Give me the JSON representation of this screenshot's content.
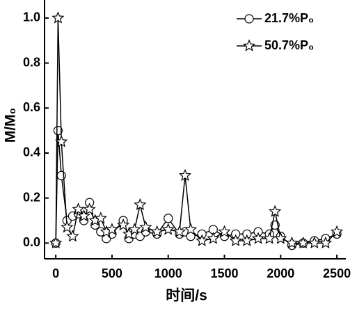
{
  "chart_data": {
    "type": "line",
    "xlabel": "时间/s",
    "ylabel": "M/M₀",
    "x": [
      0,
      20,
      50,
      100,
      150,
      200,
      250,
      300,
      350,
      400,
      450,
      500,
      600,
      650,
      700,
      750,
      800,
      900,
      1000,
      1100,
      1150,
      1200,
      1300,
      1400,
      1500,
      1600,
      1700,
      1800,
      1900,
      1950,
      2000,
      2100,
      2200,
      2300,
      2400,
      2500
    ],
    "series": [
      {
        "name": "21.7%P₀",
        "color": "#000000",
        "marker": "circle",
        "values": [
          0,
          0.5,
          0.3,
          0.1,
          0.12,
          0.13,
          0.1,
          0.18,
          0.08,
          0.05,
          0.02,
          0.04,
          0.1,
          0.02,
          0.04,
          0.03,
          0.05,
          0.04,
          0.11,
          0.04,
          0.05,
          0.03,
          0.04,
          0.06,
          0.03,
          0.04,
          0.04,
          0.05,
          0.04,
          0.08,
          0.03,
          -0.01,
          0,
          0.01,
          0.02,
          0.04
        ]
      },
      {
        "name": "50.7%P₀",
        "color": "#000000",
        "marker": "star",
        "values": [
          0,
          1.0,
          0.45,
          0.07,
          0.03,
          0.15,
          0.12,
          0.15,
          0.1,
          0.11,
          0.05,
          0.06,
          0.08,
          0.04,
          0.06,
          0.17,
          0.07,
          0.05,
          0.06,
          0.05,
          0.3,
          0.06,
          0.01,
          0.02,
          0.05,
          0.01,
          0.01,
          0.02,
          0.02,
          0.14,
          0.02,
          0,
          0,
          0,
          0,
          0.05
        ]
      }
    ],
    "xlim": [
      -100,
      2580
    ],
    "ylim": [
      -0.07,
      1.08
    ],
    "xticks": [
      0,
      500,
      1000,
      1500,
      2000,
      2500
    ],
    "yticks": [
      {
        "value": 0,
        "label": "0.0"
      },
      {
        "value": 0.2,
        "label": "0.2"
      },
      {
        "value": 0.4,
        "label": "0.4"
      },
      {
        "value": 0.6,
        "label": "0.6"
      },
      {
        "value": 0.8,
        "label": "0.8"
      },
      {
        "value": 1.0,
        "label": "1.0"
      }
    ],
    "legend": "top-right"
  }
}
